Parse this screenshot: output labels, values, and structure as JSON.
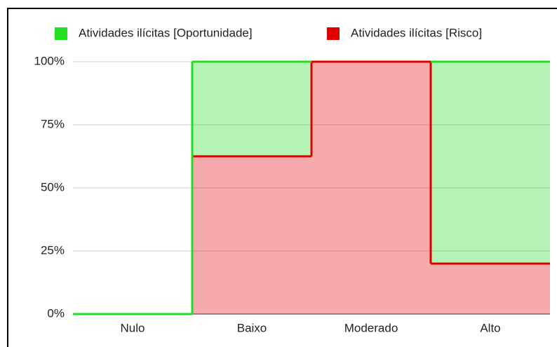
{
  "chart_data": {
    "type": "stepped_area",
    "stacked": "percent",
    "categories": [
      "Nulo",
      "Baixo",
      "Moderado",
      "Alto"
    ],
    "series": [
      {
        "name": "Atividades ilícitas [Oportunidade]",
        "color": "#22dd22",
        "values": [
          0,
          37.5,
          0,
          80
        ]
      },
      {
        "name": "Atividades ilícitas [Risco]",
        "color": "#e00000",
        "values": [
          0,
          62.5,
          100,
          20
        ]
      }
    ],
    "ylim": [
      0,
      100
    ],
    "yticks": [
      {
        "value": 0,
        "label": "0%"
      },
      {
        "value": 25,
        "label": "25%"
      },
      {
        "value": 50,
        "label": "50%"
      },
      {
        "value": 75,
        "label": "75%"
      },
      {
        "value": 100,
        "label": "100%"
      }
    ],
    "grid": true,
    "legend": "top"
  }
}
